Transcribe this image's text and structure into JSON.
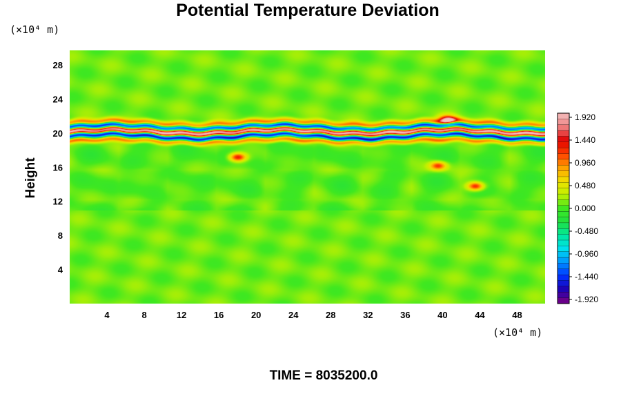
{
  "chart_data": {
    "type": "heatmap",
    "title": "Potential Temperature Deviation",
    "ylabel": "Height",
    "x_unit": "(×10⁴ m)",
    "y_unit": "(×10⁴ m)",
    "xlim": [
      0,
      51
    ],
    "ylim": [
      0,
      29.7
    ],
    "x_ticks": [
      4,
      8,
      12,
      16,
      20,
      24,
      28,
      32,
      36,
      40,
      44,
      48
    ],
    "y_ticks": [
      4,
      8,
      12,
      16,
      20,
      24,
      28
    ],
    "x_tick_labels": [
      "4",
      "8",
      "12",
      "16",
      "20",
      "24",
      "28",
      "32",
      "36",
      "40",
      "44",
      "48"
    ],
    "y_tick_labels": [
      "4",
      "8",
      "12",
      "16",
      "20",
      "24",
      "28"
    ],
    "colorbar": {
      "min": -1.92,
      "max": 1.92,
      "levels": 33,
      "labels": [
        "1.920",
        "1.440",
        "0.960",
        "0.480",
        "0.000",
        "-0.480",
        "-0.960",
        "-1.440",
        "-1.920"
      ],
      "colors": [
        "#7d0080",
        "#2000b0",
        "#0030ff",
        "#0090ff",
        "#00e0f0",
        "#00e8a0",
        "#20e040",
        "#40e820",
        "#c0f000",
        "#f0e000",
        "#ffa000",
        "#ff4000",
        "#e00000",
        "#f08080",
        "#f4c0c0"
      ]
    },
    "field_bands": [
      {
        "y": 21.2,
        "value": 0.9,
        "width": 0.35,
        "amp": 0.25
      },
      {
        "y": 20.75,
        "value": -1.7,
        "width": 0.3,
        "amp": 0.25
      },
      {
        "y": 20.2,
        "value": 1.9,
        "width": 0.35,
        "amp": 0.2
      },
      {
        "y": 19.65,
        "value": -1.8,
        "width": 0.3,
        "amp": 0.3
      },
      {
        "y": 19.1,
        "value": 0.8,
        "width": 0.3,
        "amp": 0.2
      }
    ],
    "hot_spots": [
      {
        "x": 18,
        "y": 17.2,
        "value": 1.3
      },
      {
        "x": 39.5,
        "y": 16.2,
        "value": 1.1
      },
      {
        "x": 43.5,
        "y": 13.8,
        "value": 1.3
      },
      {
        "x": 40.5,
        "y": 21.6,
        "value": 1.5
      }
    ],
    "background_value": 0.1
  },
  "footer": {
    "time_label": "TIME = 8035200.0"
  }
}
